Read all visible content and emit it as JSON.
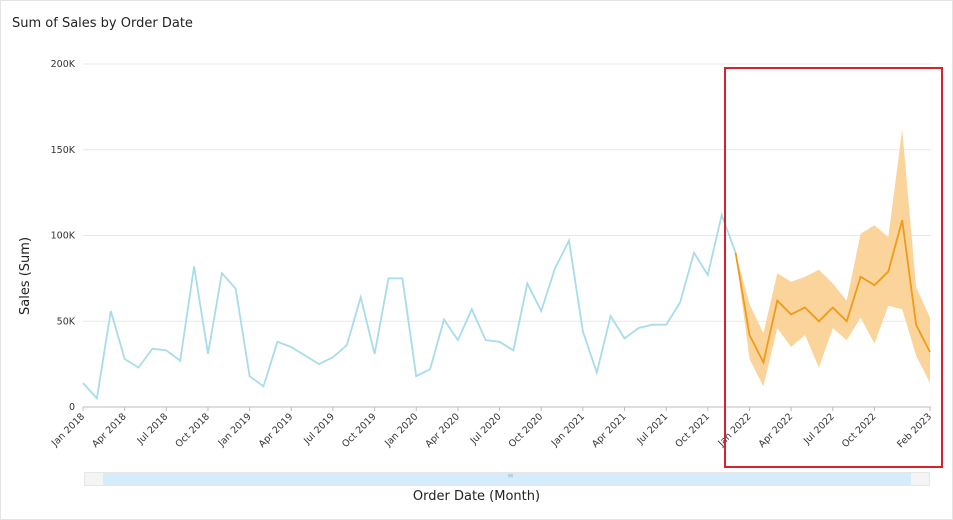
{
  "chart_data": {
    "type": "line",
    "title": "Sum of Sales by Order Date",
    "xlabel": "Order Date (Month)",
    "ylabel": "Sales (Sum)",
    "ylim": [
      0,
      200000
    ],
    "y_ticks": [
      {
        "value": 0,
        "label": "0"
      },
      {
        "value": 50000,
        "label": "50K"
      },
      {
        "value": 100000,
        "label": "100K"
      },
      {
        "value": 150000,
        "label": "150K"
      },
      {
        "value": 200000,
        "label": "200K"
      }
    ],
    "x_tick_labels": [
      "Jan 2018",
      "Apr 2018",
      "Jul 2018",
      "Oct 2018",
      "Jan 2019",
      "Apr 2019",
      "Jul 2019",
      "Oct 2019",
      "Jan 2020",
      "Apr 2020",
      "Jul 2020",
      "Oct 2020",
      "Jan 2021",
      "Apr 2021",
      "Jul 2021",
      "Oct 2021",
      "Jan 2022",
      "Apr 2022",
      "Jul 2022",
      "Oct 2022",
      "Feb 2023"
    ],
    "x_tick_months": [
      0,
      3,
      6,
      9,
      12,
      15,
      18,
      21,
      24,
      27,
      30,
      33,
      36,
      39,
      42,
      45,
      48,
      51,
      54,
      57,
      61
    ],
    "actual": {
      "start": "Jan 2018",
      "color": "#a8dcea",
      "values": [
        14000,
        5000,
        56000,
        28000,
        23000,
        34000,
        33000,
        27000,
        82000,
        31000,
        78000,
        69000,
        18000,
        12000,
        38000,
        35000,
        30000,
        25000,
        29000,
        36000,
        64000,
        31000,
        75000,
        75000,
        18000,
        22000,
        51000,
        39000,
        57000,
        39000,
        38000,
        33000,
        72000,
        56000,
        81000,
        97000,
        44000,
        20000,
        53000,
        40000,
        46000,
        48000,
        48000,
        61000,
        90000,
        77000,
        112000,
        90000
      ]
    },
    "forecast": {
      "start": "Jan 2022",
      "color": "#f09a1a",
      "band_color": "#fbd49b",
      "values": [
        90000,
        42000,
        26000,
        62000,
        54000,
        58000,
        50000,
        58000,
        50000,
        76000,
        71000,
        79000,
        109000,
        48000,
        32000
      ],
      "lower": [
        90000,
        28000,
        12000,
        46000,
        35000,
        42000,
        23000,
        46000,
        39000,
        52000,
        37000,
        59000,
        57000,
        30000,
        14000
      ],
      "upper": [
        90000,
        60000,
        43000,
        78000,
        73000,
        76000,
        80000,
        72000,
        62000,
        101000,
        106000,
        99000,
        162000,
        70000,
        52000
      ]
    }
  }
}
